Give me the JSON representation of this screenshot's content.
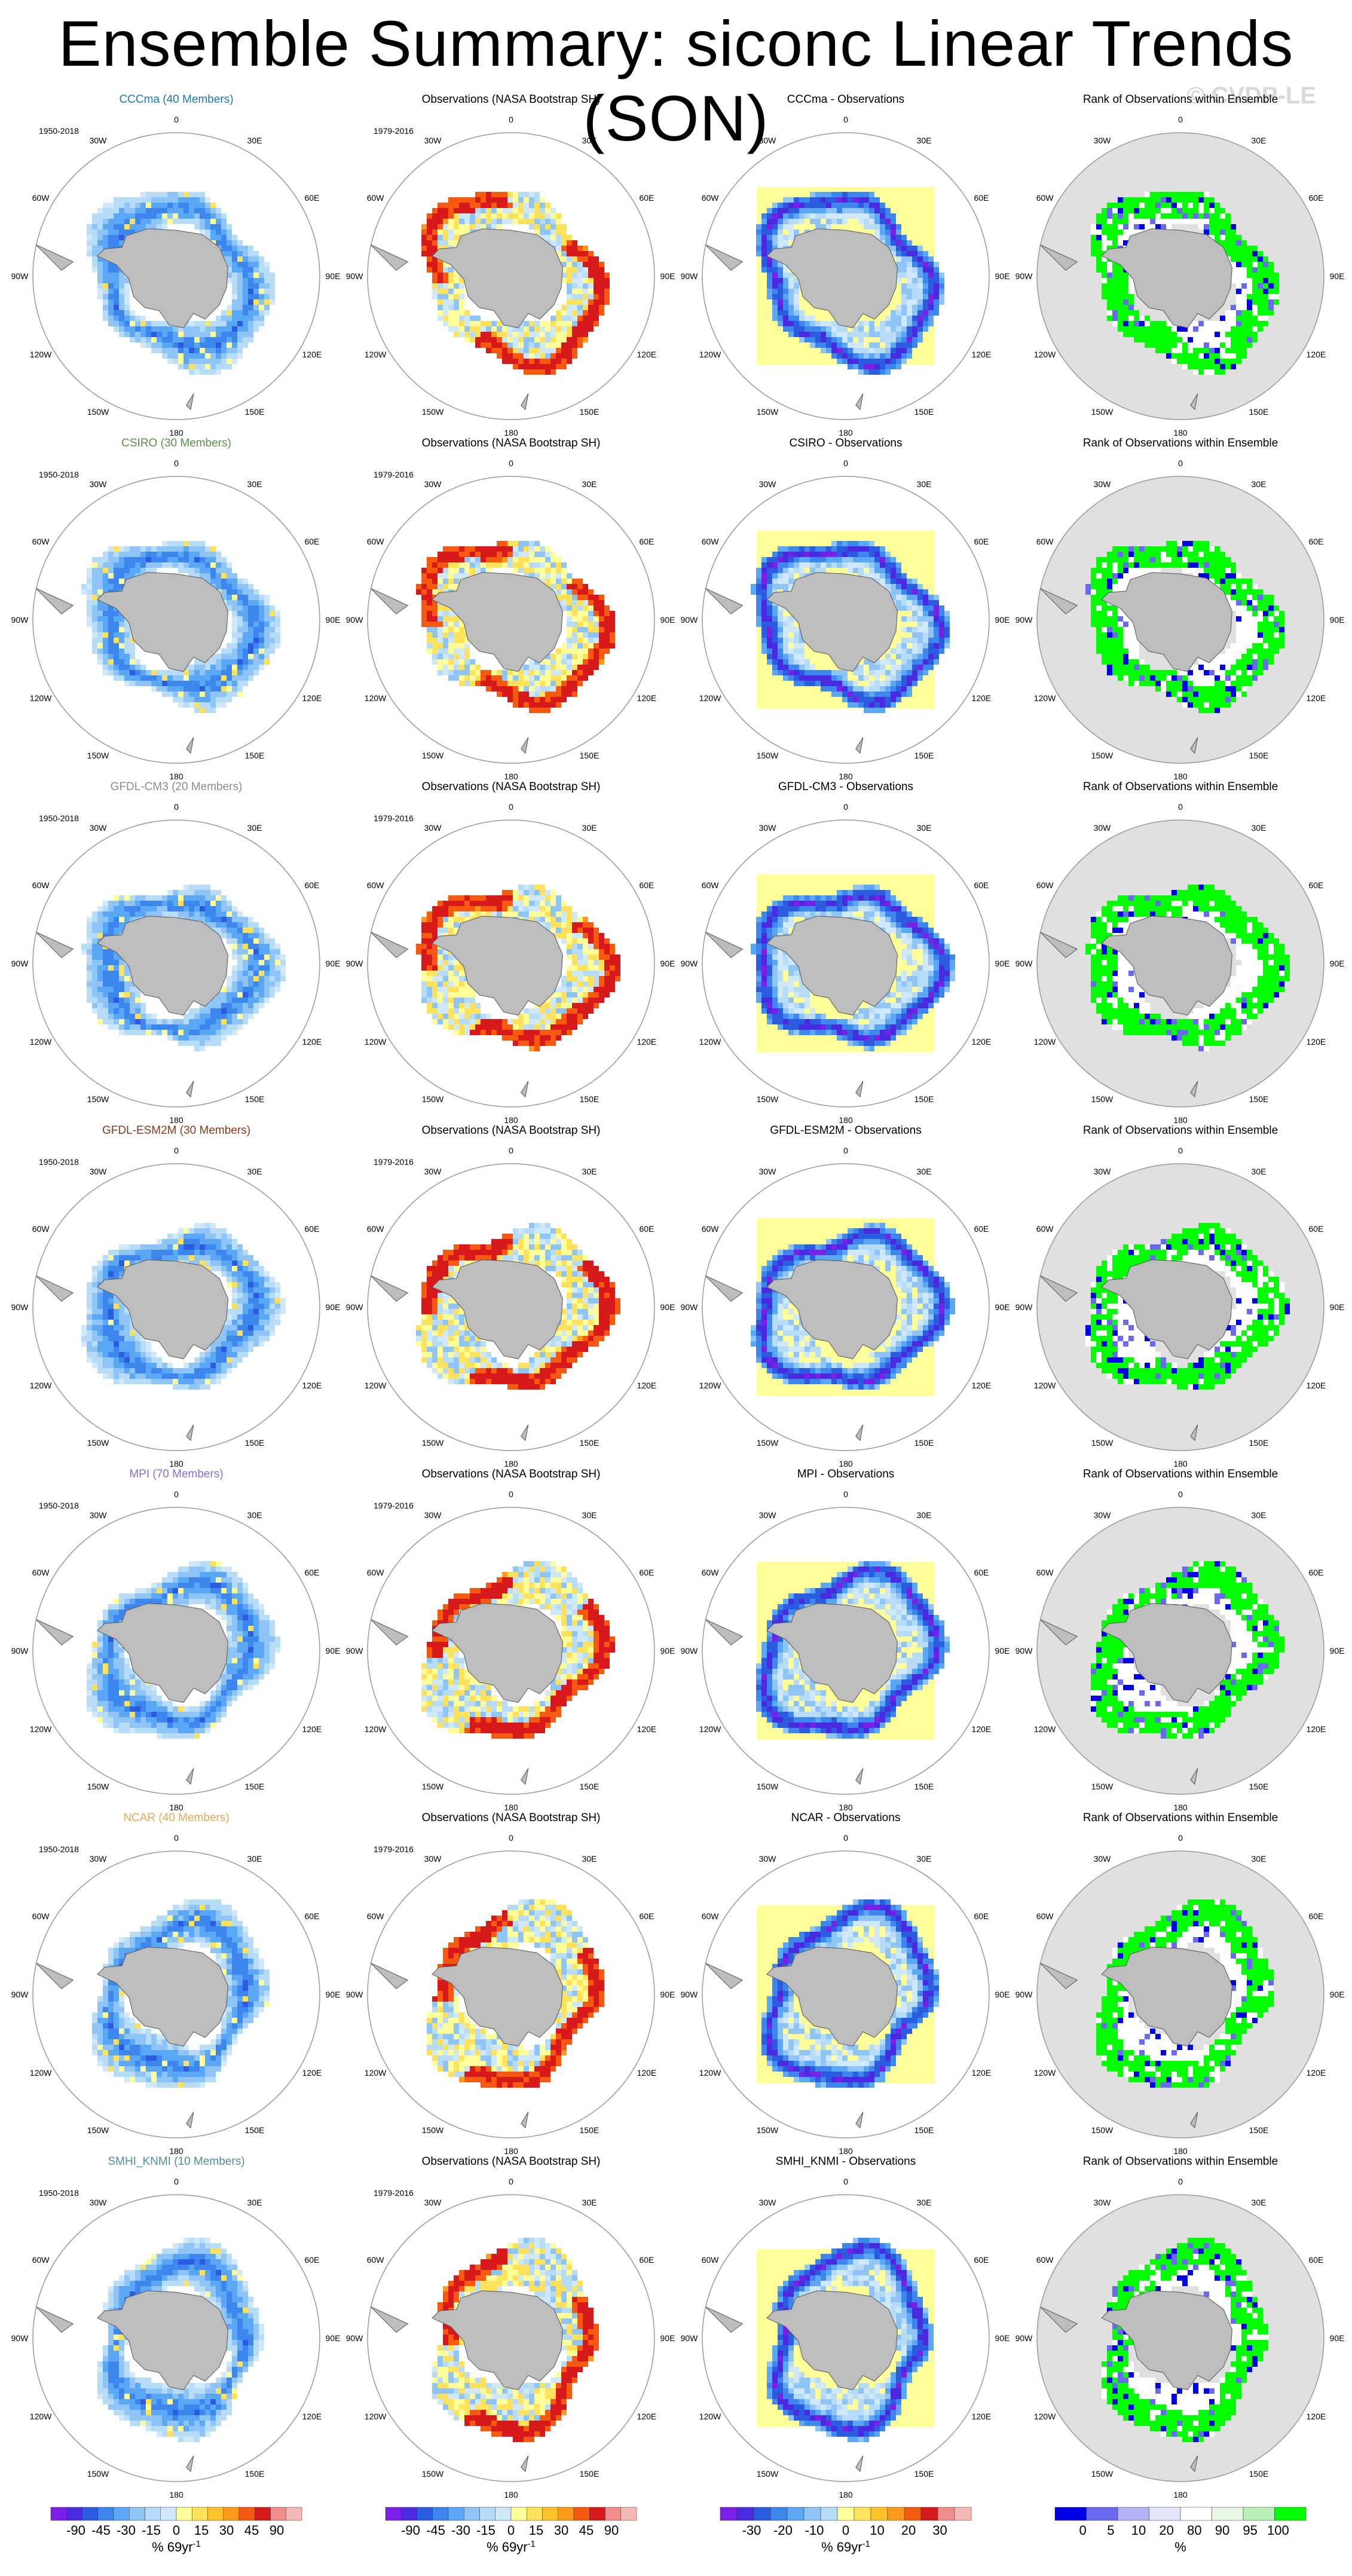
{
  "page": {
    "title": "Ensemble Summary: siconc Linear Trends (SON)",
    "watermark": "© CVDP-LE"
  },
  "colors": {
    "land": "#bdbdbd",
    "rank_background": "#e0e0e0",
    "ring": "#999999"
  },
  "panel_labels": {
    "observations": "Observations (NASA Bootstrap SH)",
    "rank": "Rank of Observations within Ensemble",
    "model_period": "1950-2018",
    "obs_period": "1979-2016",
    "lon_labels": [
      "0",
      "30E",
      "60E",
      "90E",
      "120E",
      "150E",
      "180",
      "150W",
      "120W",
      "90W",
      "60W",
      "30W"
    ]
  },
  "chart_data": {
    "type": "heatmap",
    "rows": [
      {
        "model": "CCCma",
        "members": 40,
        "title": "CCCma (40 Members)",
        "diff_title": "CCCma - Observations",
        "color": "#1f77b4"
      },
      {
        "model": "CSIRO",
        "members": 30,
        "title": "CSIRO (30 Members)",
        "diff_title": "CSIRO - Observations",
        "color": "#5a8f4a"
      },
      {
        "model": "GFDL-CM3",
        "members": 20,
        "title": "GFDL-CM3 (20 Members)",
        "diff_title": "GFDL-CM3 - Observations",
        "color": "#8c8c8c"
      },
      {
        "model": "GFDL-ESM2M",
        "members": 30,
        "title": "GFDL-ESM2M (30 Members)",
        "diff_title": "GFDL-ESM2M - Observations",
        "color": "#8b3a1a"
      },
      {
        "model": "MPI",
        "members": 70,
        "title": "MPI (70 Members)",
        "diff_title": "MPI - Observations",
        "color": "#8a6fd8"
      },
      {
        "model": "NCAR",
        "members": 40,
        "title": "NCAR (40 Members)",
        "diff_title": "NCAR - Observations",
        "color": "#e8a85a"
      },
      {
        "model": "SMHI_KNMI",
        "members": 10,
        "title": "SMHI_KNMI (10 Members)",
        "diff_title": "SMHI_KNMI - Observations",
        "color": "#4f8f9a"
      }
    ],
    "colorbars": [
      {
        "ticks": [
          "-90",
          "-45",
          "-30",
          "-15",
          "0",
          "15",
          "30",
          "45",
          "90"
        ],
        "unit": "% 69yr",
        "unit_sup": "-1",
        "colors": [
          "#7a1fe6",
          "#4a2ae0",
          "#2b5ce0",
          "#3d86ee",
          "#5aa8f5",
          "#8ec4f6",
          "#b6dcf8",
          "#cfe9fa",
          "#ffff99",
          "#ffe25a",
          "#ffc22a",
          "#ff9a1a",
          "#f55a10",
          "#d7191c",
          "#f08c8c",
          "#f4b8b8"
        ]
      },
      {
        "ticks": [
          "-90",
          "-45",
          "-30",
          "-15",
          "0",
          "15",
          "30",
          "45",
          "90"
        ],
        "unit": "% 69yr",
        "unit_sup": "-1",
        "colors": [
          "#7a1fe6",
          "#4a2ae0",
          "#2b5ce0",
          "#3d86ee",
          "#5aa8f5",
          "#8ec4f6",
          "#b6dcf8",
          "#cfe9fa",
          "#ffff99",
          "#ffe25a",
          "#ffc22a",
          "#ff9a1a",
          "#f55a10",
          "#d7191c",
          "#f08c8c",
          "#f4b8b8"
        ]
      },
      {
        "ticks": [
          "-30",
          "-20",
          "-10",
          "0",
          "10",
          "20",
          "30"
        ],
        "unit": "% 69yr",
        "unit_sup": "-1",
        "colors": [
          "#7a1fe6",
          "#4a2ae0",
          "#2b5ce0",
          "#3d86ee",
          "#5aa8f5",
          "#8ec4f6",
          "#b6dcf8",
          "#ffff99",
          "#ffe25a",
          "#ffc22a",
          "#ff9a1a",
          "#f55a10",
          "#d7191c",
          "#f08c8c",
          "#f4b8b8"
        ]
      },
      {
        "ticks": [
          "0",
          "5",
          "10",
          "20",
          "80",
          "90",
          "95",
          "100"
        ],
        "unit": "%",
        "unit_sup": "",
        "colors": [
          "#0000e6",
          "#6a6af0",
          "#b2b2f4",
          "#e6e6fa",
          "#ffffff",
          "#e6f7e6",
          "#b8f0b8",
          "#00ff00"
        ]
      }
    ]
  }
}
